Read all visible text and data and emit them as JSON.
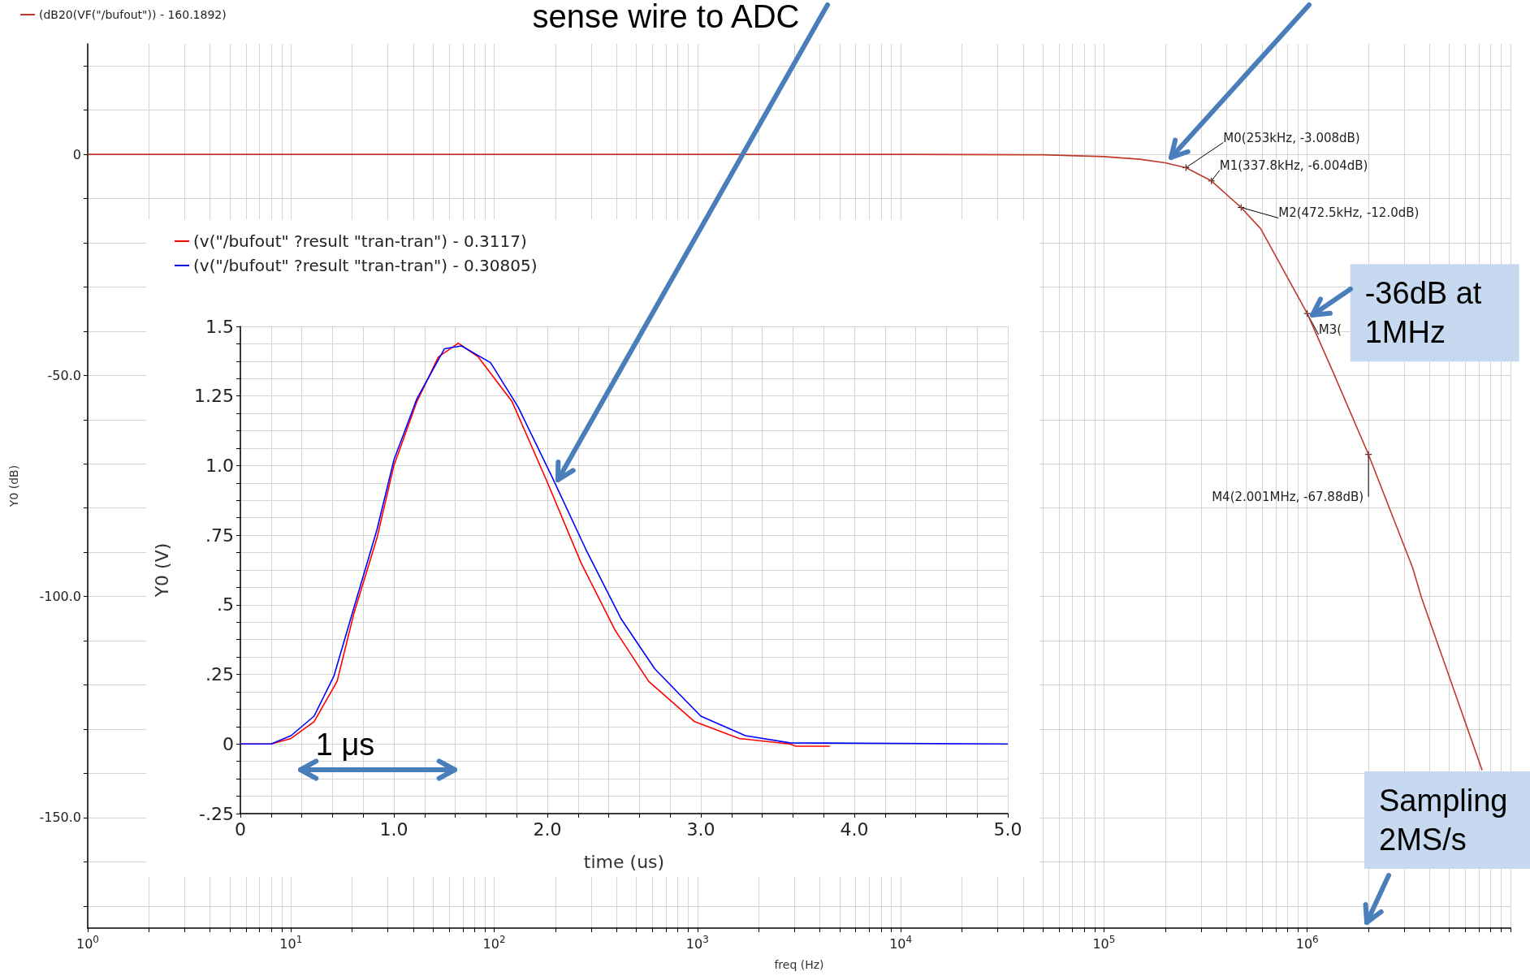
{
  "chart_data": [
    {
      "type": "line",
      "xlabel": "freq (Hz)",
      "ylabel": "Y0 (dB)",
      "log": "x",
      "grid": true,
      "legend": "top left",
      "xlim": [
        1,
        10000000
      ],
      "xticks": [
        {
          "value": 1,
          "label": "10$^{0}$"
        },
        {
          "value": 10,
          "label": "10$^{1}$"
        },
        {
          "value": 100,
          "label": "10$^{2}$"
        },
        {
          "value": 1000,
          "label": "10$^{3}$"
        },
        {
          "value": 10000,
          "label": "10$^{4}$"
        },
        {
          "value": 100000,
          "label": "10$^{5}$"
        },
        {
          "value": 1000000,
          "label": "10$^{6}$"
        },
        {
          "value": 10000000,
          "label": null
        },
        {
          "value": 2,
          "label": null
        },
        {
          "value": 3,
          "label": null
        },
        {
          "value": 4,
          "label": null
        },
        {
          "value": 5,
          "label": null
        },
        {
          "value": 6,
          "label": null
        },
        {
          "value": 7,
          "label": null
        },
        {
          "value": 8,
          "label": null
        },
        {
          "value": 9,
          "label": null
        },
        {
          "value": 20,
          "label": null
        },
        {
          "value": 30,
          "label": null
        },
        {
          "value": 40,
          "label": null
        },
        {
          "value": 50,
          "label": null
        },
        {
          "value": 60,
          "label": null
        },
        {
          "value": 70,
          "label": null
        },
        {
          "value": 80,
          "label": null
        },
        {
          "value": 90,
          "label": null
        },
        {
          "value": 200,
          "label": null
        },
        {
          "value": 300,
          "label": null
        },
        {
          "value": 400,
          "label": null
        },
        {
          "value": 500,
          "label": null
        },
        {
          "value": 600,
          "label": null
        },
        {
          "value": 700,
          "label": null
        },
        {
          "value": 800,
          "label": null
        },
        {
          "value": 900,
          "label": null
        },
        {
          "value": 2000,
          "label": null
        },
        {
          "value": 3000,
          "label": null
        },
        {
          "value": 4000,
          "label": null
        },
        {
          "value": 5000,
          "label": null
        },
        {
          "value": 6000,
          "label": null
        },
        {
          "value": 7000,
          "label": null
        },
        {
          "value": 8000,
          "label": null
        },
        {
          "value": 9000,
          "label": null
        },
        {
          "value": 20000,
          "label": null
        },
        {
          "value": 30000,
          "label": null
        },
        {
          "value": 40000,
          "label": null
        },
        {
          "value": 50000,
          "label": null
        },
        {
          "value": 60000,
          "label": null
        },
        {
          "value": 70000,
          "label": null
        },
        {
          "value": 80000,
          "label": null
        },
        {
          "value": 90000,
          "label": null
        },
        {
          "value": 200000,
          "label": null
        },
        {
          "value": 300000,
          "label": null
        },
        {
          "value": 400000,
          "label": null
        },
        {
          "value": 500000,
          "label": null
        },
        {
          "value": 600000,
          "label": null
        },
        {
          "value": 700000,
          "label": null
        },
        {
          "value": 800000,
          "label": null
        },
        {
          "value": 900000,
          "label": null
        },
        {
          "value": 2000000,
          "label": null
        },
        {
          "value": 3000000,
          "label": null
        },
        {
          "value": 4000000,
          "label": null
        },
        {
          "value": 5000000,
          "label": null
        },
        {
          "value": 6000000,
          "label": null
        },
        {
          "value": 7000000,
          "label": null
        },
        {
          "value": 8000000,
          "label": null
        },
        {
          "value": 9000000,
          "label": null
        }
      ],
      "ylim": [
        -175,
        25
      ],
      "yticks": [
        {
          "value": 20,
          "label": null
        },
        {
          "value": 10,
          "label": null
        },
        {
          "value": 0,
          "label": "0"
        },
        {
          "value": -10,
          "label": null
        },
        {
          "value": -20,
          "label": null
        },
        {
          "value": -30,
          "label": null
        },
        {
          "value": -40,
          "label": null
        },
        {
          "value": -50,
          "label": "-50.0"
        },
        {
          "value": -60,
          "label": null
        },
        {
          "value": -70,
          "label": null
        },
        {
          "value": -80,
          "label": null
        },
        {
          "value": -90,
          "label": null
        },
        {
          "value": -100,
          "label": "-100.0"
        },
        {
          "value": -110,
          "label": null
        },
        {
          "value": -120,
          "label": null
        },
        {
          "value": -130,
          "label": null
        },
        {
          "value": -140,
          "label": null
        },
        {
          "value": -150,
          "label": "-150.0"
        },
        {
          "value": -160,
          "label": null
        },
        {
          "value": -170,
          "label": null
        }
      ],
      "series": [
        {
          "name": "(dB20(VF(\"/bufout\")) - 160.1892)",
          "color": "#c0392b",
          "x": [
            1,
            10000,
            50000,
            100000,
            150000,
            200000,
            253000,
            337800,
            472500,
            590000,
            1000000,
            1350000,
            2001000,
            3300000,
            3650000,
            7250000
          ],
          "values": [
            0,
            0,
            -0.1,
            -0.5,
            -1.1,
            -1.9,
            -3.008,
            -6.004,
            -12.0,
            -16.8,
            -36,
            -49.6,
            -67.88,
            -93.5,
            -100.3,
            -139.3
          ]
        }
      ],
      "annotations": [
        "sense wire to ADC",
        {
          "text": "M0(253kHz, -3.008dB)",
          "x": 253000,
          "y": -3.008
        },
        {
          "text": "M1(337.8kHz, -6.004dB)",
          "x": 337800,
          "y": -6.004
        },
        {
          "text": "M2(472.5kHz, -12.0dB)",
          "x": 472500,
          "y": -12.0
        },
        {
          "text": "M3(",
          "x": 1000000,
          "y": -36
        },
        {
          "text": "M4(2.001MHz, -67.88dB)",
          "x": 2001000,
          "y": -67.88
        },
        {
          "text": "-36dB at 1MHz",
          "x": 1000000,
          "y": -36
        },
        "Sampling 2MS/s"
      ]
    },
    {
      "type": "line",
      "xlabel": "time (us)",
      "ylabel": "Y0 (V)",
      "grid": true,
      "legend": "top left",
      "xlim": [
        0,
        5
      ],
      "xticks": [
        {
          "value": 0,
          "label": "0"
        },
        {
          "value": 1,
          "label": "1.0"
        },
        {
          "value": 2,
          "label": "2.0"
        },
        {
          "value": 3,
          "label": "3.0"
        },
        {
          "value": 4,
          "label": "4.0"
        },
        {
          "value": 5,
          "label": "5.0"
        },
        {
          "value": 0.2,
          "label": null
        },
        {
          "value": 0.4,
          "label": null
        },
        {
          "value": 0.6,
          "label": null
        },
        {
          "value": 0.8,
          "label": null
        },
        {
          "value": 1.2,
          "label": null
        },
        {
          "value": 1.4,
          "label": null
        },
        {
          "value": 1.6,
          "label": null
        },
        {
          "value": 1.8,
          "label": null
        },
        {
          "value": 2.2,
          "label": null
        },
        {
          "value": 2.4,
          "label": null
        },
        {
          "value": 2.6,
          "label": null
        },
        {
          "value": 2.8,
          "label": null
        },
        {
          "value": 3.2,
          "label": null
        },
        {
          "value": 3.4,
          "label": null
        },
        {
          "value": 3.6,
          "label": null
        },
        {
          "value": 3.8,
          "label": null
        },
        {
          "value": 4.2,
          "label": null
        },
        {
          "value": 4.4,
          "label": null
        },
        {
          "value": 4.6,
          "label": null
        },
        {
          "value": 4.8,
          "label": null
        }
      ],
      "ylim": [
        -0.25,
        1.5
      ],
      "yticks": [
        {
          "value": -0.25,
          "label": "-.25"
        },
        {
          "value": 0,
          "label": "0"
        },
        {
          "value": 0.25,
          "label": ".25"
        },
        {
          "value": 0.5,
          "label": ".5"
        },
        {
          "value": 0.75,
          "label": ".75"
        },
        {
          "value": 1.0,
          "label": "1.0"
        },
        {
          "value": 1.25,
          "label": "1.25"
        },
        {
          "value": 1.5,
          "label": "1.5"
        },
        {
          "value": -0.1875,
          "label": null
        },
        {
          "value": -0.125,
          "label": null
        },
        {
          "value": -0.0625,
          "label": null
        },
        {
          "value": 0.0625,
          "label": null
        },
        {
          "value": 0.125,
          "label": null
        },
        {
          "value": 0.1875,
          "label": null
        },
        {
          "value": 0.3125,
          "label": null
        },
        {
          "value": 0.375,
          "label": null
        },
        {
          "value": 0.4375,
          "label": null
        },
        {
          "value": 0.5625,
          "label": null
        },
        {
          "value": 0.625,
          "label": null
        },
        {
          "value": 0.6875,
          "label": null
        },
        {
          "value": 0.8125,
          "label": null
        },
        {
          "value": 0.875,
          "label": null
        },
        {
          "value": 0.9375,
          "label": null
        },
        {
          "value": 1.0625,
          "label": null
        },
        {
          "value": 1.125,
          "label": null
        },
        {
          "value": 1.1875,
          "label": null
        },
        {
          "value": 1.3125,
          "label": null
        },
        {
          "value": 1.375,
          "label": null
        },
        {
          "value": 1.4375,
          "label": null
        }
      ],
      "series": [
        {
          "name": "(v(\"/bufout\" ?result \"tran-tran\") - 0.3117)",
          "color": "#ff0000",
          "x": [
            0,
            0.2,
            0.33,
            0.48,
            0.63,
            0.74,
            0.89,
            1.0,
            1.15,
            1.29,
            1.42,
            1.55,
            1.77,
            2.0,
            2.22,
            2.44,
            2.66,
            2.96,
            3.25,
            3.58,
            3.62,
            3.84
          ],
          "values": [
            0,
            0,
            0.02,
            0.08,
            0.225,
            0.47,
            0.74,
            1.0,
            1.23,
            1.39,
            1.44,
            1.39,
            1.23,
            0.94,
            0.65,
            0.41,
            0.225,
            0.08,
            0.02,
            0,
            -0.008,
            -0.008
          ]
        },
        {
          "name": "(v(\"/bufout\" ?result \"tran-tran\") - 0.30805)",
          "color": "#0000ff",
          "x": [
            0,
            0.2,
            0.33,
            0.48,
            0.61,
            0.74,
            0.89,
            1.0,
            1.15,
            1.33,
            1.44,
            1.63,
            1.81,
            2.03,
            2.25,
            2.48,
            2.7,
            3.0,
            3.29,
            3.58,
            5.0
          ],
          "values": [
            0,
            0,
            0.03,
            0.1,
            0.245,
            0.49,
            0.77,
            1.02,
            1.24,
            1.42,
            1.43,
            1.37,
            1.21,
            0.96,
            0.7,
            0.45,
            0.27,
            0.1,
            0.03,
            0.004,
            0
          ]
        }
      ],
      "annotations": [
        "1 μs"
      ]
    }
  ]
}
